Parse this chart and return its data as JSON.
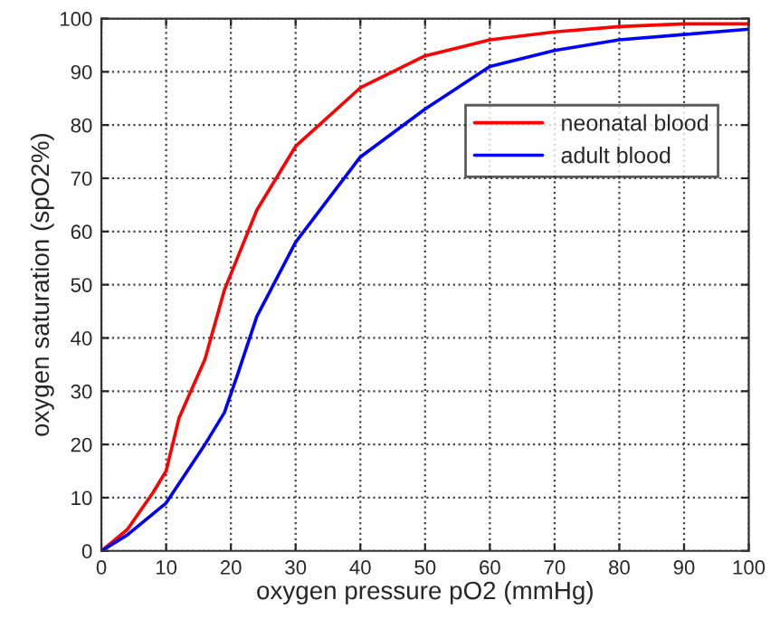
{
  "chart_data": {
    "type": "line",
    "xlabel": "oxygen pressure pO2 (mmHg)",
    "ylabel": "oxygen saturation (spO2%)",
    "xlim": [
      0,
      100
    ],
    "ylim": [
      0,
      100
    ],
    "xticks": [
      0,
      10,
      20,
      30,
      40,
      50,
      60,
      70,
      80,
      90,
      100
    ],
    "yticks": [
      0,
      10,
      20,
      30,
      40,
      50,
      60,
      70,
      80,
      90,
      100
    ],
    "grid": true,
    "legend": "center right",
    "line_style": "solid",
    "series": [
      {
        "name": "neonatal blood",
        "color": "#ff0000",
        "x": [
          0,
          4,
          8,
          10,
          12,
          16,
          19,
          24,
          30,
          40,
          50,
          60,
          70,
          80,
          90,
          100
        ],
        "values": [
          0,
          4,
          11,
          15,
          25,
          36,
          49,
          64,
          76,
          87,
          93,
          96,
          97.5,
          98.5,
          99,
          99
        ]
      },
      {
        "name": "adult blood",
        "color": "#0000ff",
        "x": [
          0,
          4,
          8,
          10,
          16,
          19,
          21,
          24,
          30,
          40,
          50,
          60,
          70,
          80,
          90,
          100
        ],
        "values": [
          0,
          3,
          7,
          9,
          20,
          26,
          33,
          44,
          58,
          74,
          83,
          91,
          94,
          96,
          97,
          98
        ]
      }
    ]
  }
}
